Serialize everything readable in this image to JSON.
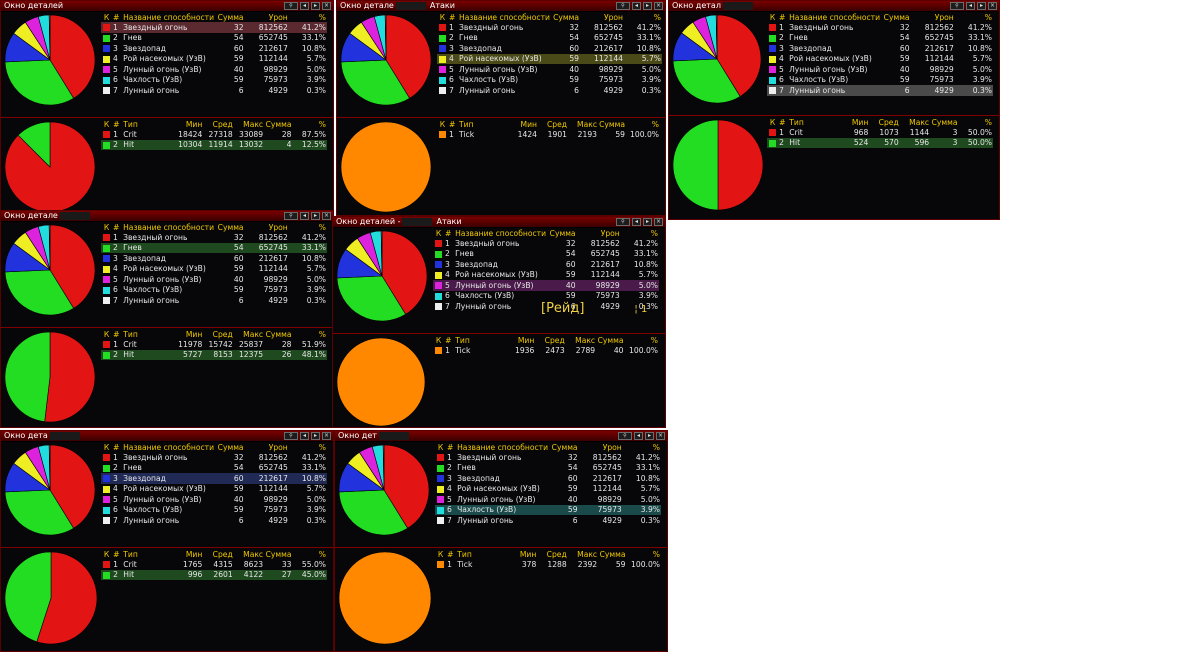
{
  "title_main": "Окно деталей",
  "title_main_cut1": "Окно детале",
  "title_main_cut2": "Окно детал",
  "title_main_cut3": "Окно детале",
  "title_main_cut4": "Окно дета",
  "title_main_cut5": "Окно дет",
  "title_main_cut6": "Окно детале",
  "title_sub": "Атаки",
  "title_sep": "-",
  "btn_report_icon": "magnifier-icon",
  "btn_report_label": "Rep",
  "btn_prev": "◂",
  "btn_next": "▸",
  "btn_close": "×",
  "abilities_headers": {
    "k": "К",
    "n": "#",
    "name": "Название способности",
    "count": "Сумма",
    "dmg": "Урон",
    "pct": "%"
  },
  "hits_headers": {
    "k": "К",
    "n": "#",
    "type": "Тип",
    "min": "Мин",
    "avg": "Сред",
    "max": "Макс",
    "count": "Сумма",
    "pct": "%"
  },
  "abilities": [
    {
      "n": "1",
      "name": "Звездный огонь",
      "count": "32",
      "dmg": "812562",
      "pct": "41.2%",
      "color": "#e21414"
    },
    {
      "n": "2",
      "name": "Гнев",
      "count": "54",
      "dmg": "652745",
      "pct": "33.1%",
      "color": "#22dd22"
    },
    {
      "n": "3",
      "name": "Звездопад",
      "count": "60",
      "dmg": "212617",
      "pct": "10.8%",
      "color": "#2233dd"
    },
    {
      "n": "4",
      "name": "Рой насекомых (УзВ)",
      "count": "59",
      "dmg": "112144",
      "pct": "5.7%",
      "color": "#eeee22"
    },
    {
      "n": "5",
      "name": "Лунный огонь (УзВ)",
      "count": "40",
      "dmg": "98929",
      "pct": "5.0%",
      "color": "#dd22dd"
    },
    {
      "n": "6",
      "name": "Чахлость (УзВ)",
      "count": "59",
      "dmg": "75973",
      "pct": "3.9%",
      "color": "#22dddd"
    },
    {
      "n": "7",
      "name": "Лунный огонь",
      "count": "6",
      "dmg": "4929",
      "pct": "0.3%",
      "color": "#eeeeee"
    }
  ],
  "overlay_text": "[Рейд]",
  "overlay_tail": "¦ 1",
  "panels": [
    {
      "selected": 0,
      "hits": [
        {
          "n": "1",
          "type": "Crit",
          "min": "18424",
          "avg": "27318",
          "max": "33089",
          "count": "28",
          "pct": "87.5%",
          "color": "#e21414"
        },
        {
          "n": "2",
          "type": "Hit",
          "min": "10304",
          "avg": "11914",
          "max": "13032",
          "count": "4",
          "pct": "12.5%",
          "color": "#22dd22"
        }
      ],
      "chart_data": {
        "type": "pie",
        "categories": [
          "Crit",
          "Hit"
        ],
        "values": [
          87.5,
          12.5
        ]
      }
    },
    {
      "selected": 3,
      "hits": [
        {
          "n": "1",
          "type": "Tick",
          "min": "1424",
          "avg": "1901",
          "max": "2193",
          "count": "59",
          "pct": "100.0%",
          "color": "#ff8800"
        }
      ],
      "chart_data": {
        "type": "pie",
        "categories": [
          "Tick"
        ],
        "values": [
          100.0
        ]
      }
    },
    {
      "selected": 6,
      "hits": [
        {
          "n": "1",
          "type": "Crit",
          "min": "968",
          "avg": "1073",
          "max": "1144",
          "count": "3",
          "pct": "50.0%",
          "color": "#e21414"
        },
        {
          "n": "2",
          "type": "Hit",
          "min": "524",
          "avg": "570",
          "max": "596",
          "count": "3",
          "pct": "50.0%",
          "color": "#22dd22"
        }
      ],
      "chart_data": {
        "type": "pie",
        "categories": [
          "Crit",
          "Hit"
        ],
        "values": [
          50.0,
          50.0
        ]
      }
    },
    {
      "selected": 1,
      "hits": [
        {
          "n": "1",
          "type": "Crit",
          "min": "11978",
          "avg": "15742",
          "max": "25837",
          "count": "28",
          "pct": "51.9%",
          "color": "#e21414"
        },
        {
          "n": "2",
          "type": "Hit",
          "min": "5727",
          "avg": "8153",
          "max": "12375",
          "count": "26",
          "pct": "48.1%",
          "color": "#22dd22"
        }
      ],
      "chart_data": {
        "type": "pie",
        "categories": [
          "Crit",
          "Hit"
        ],
        "values": [
          51.9,
          48.1
        ]
      }
    },
    {
      "selected": 4,
      "hits": [
        {
          "n": "1",
          "type": "Tick",
          "min": "1936",
          "avg": "2473",
          "max": "2789",
          "count": "40",
          "pct": "100.0%",
          "color": "#ff8800"
        }
      ],
      "chart_data": {
        "type": "pie",
        "categories": [
          "Tick"
        ],
        "values": [
          100.0
        ]
      }
    },
    {
      "selected": 2,
      "hits": [
        {
          "n": "1",
          "type": "Crit",
          "min": "1765",
          "avg": "4315",
          "max": "8623",
          "count": "33",
          "pct": "55.0%",
          "color": "#e21414"
        },
        {
          "n": "2",
          "type": "Hit",
          "min": "996",
          "avg": "2601",
          "max": "4122",
          "count": "27",
          "pct": "45.0%",
          "color": "#22dd22"
        }
      ],
      "chart_data": {
        "type": "pie",
        "categories": [
          "Crit",
          "Hit"
        ],
        "values": [
          55.0,
          45.0
        ]
      }
    },
    {
      "selected": 5,
      "hits": [
        {
          "n": "1",
          "type": "Tick",
          "min": "378",
          "avg": "1288",
          "max": "2392",
          "count": "59",
          "pct": "100.0%",
          "color": "#ff8800"
        }
      ],
      "chart_data": {
        "type": "pie",
        "categories": [
          "Tick"
        ],
        "values": [
          100.0
        ]
      }
    }
  ],
  "chart_data": {
    "type": "pie",
    "categories": [
      "Звездный огонь",
      "Гнев",
      "Звездопад",
      "Рой насекомых (УзВ)",
      "Лунный огонь (УзВ)",
      "Чахлость (УзВ)",
      "Лунный огонь"
    ],
    "values": [
      41.2,
      33.1,
      10.8,
      5.7,
      5.0,
      3.9,
      0.3
    ]
  }
}
